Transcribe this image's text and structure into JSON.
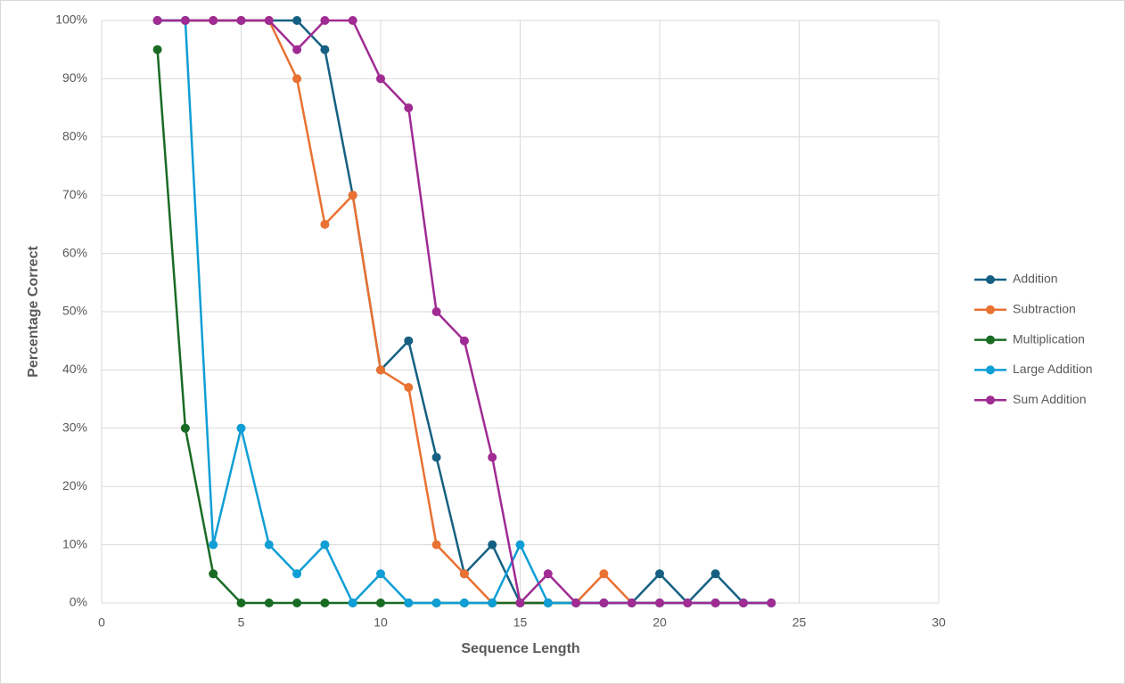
{
  "chart_data": {
    "type": "line",
    "xlabel": "Sequence Length",
    "ylabel": "Percentage Correct",
    "x": [
      2,
      3,
      4,
      5,
      6,
      7,
      8,
      9,
      10,
      11,
      12,
      13,
      14,
      15,
      16,
      17,
      18,
      19,
      20,
      21,
      22,
      23,
      24
    ],
    "series": [
      {
        "name": "Addition",
        "color": "#156082",
        "values": [
          100,
          100,
          100,
          100,
          100,
          100,
          95,
          70,
          40,
          45,
          25,
          5,
          10,
          0,
          0,
          0,
          0,
          0,
          5,
          0,
          5,
          0,
          0
        ]
      },
      {
        "name": "Subtraction",
        "color": "#e97132",
        "values": [
          100,
          100,
          100,
          100,
          100,
          90,
          65,
          70,
          40,
          37,
          10,
          5,
          0,
          0,
          0,
          0,
          5,
          0,
          0,
          0,
          0,
          0,
          0
        ]
      },
      {
        "name": "Multiplication",
        "color": "#196b24",
        "values": [
          95,
          30,
          5,
          0,
          0,
          0,
          0,
          0,
          0,
          0,
          0,
          0,
          0,
          0,
          0,
          0,
          0,
          0,
          0,
          0,
          0,
          0,
          0
        ]
      },
      {
        "name": "Large Addition",
        "color": "#0f9ed5",
        "values": [
          100,
          100,
          10,
          30,
          10,
          5,
          10,
          0,
          5,
          0,
          0,
          0,
          0,
          10,
          0,
          0,
          0,
          0,
          0,
          0,
          0,
          0,
          0
        ]
      },
      {
        "name": "Sum Addition",
        "color": "#a02b93",
        "values": [
          100,
          100,
          100,
          100,
          100,
          95,
          100,
          100,
          90,
          85,
          50,
          45,
          25,
          0,
          5,
          0,
          0,
          0,
          0,
          0,
          0,
          0,
          0
        ]
      }
    ],
    "xlim": [
      0,
      30
    ],
    "xticks": [
      0,
      5,
      10,
      15,
      20,
      25,
      30
    ],
    "ylim": [
      0,
      100
    ],
    "yticks": [
      {
        "value": 0,
        "label": "0%"
      },
      {
        "value": 10,
        "label": "10%"
      },
      {
        "value": 20,
        "label": "20%"
      },
      {
        "value": 30,
        "label": "30%"
      },
      {
        "value": 40,
        "label": "40%"
      },
      {
        "value": 50,
        "label": "50%"
      },
      {
        "value": 60,
        "label": "60%"
      },
      {
        "value": 70,
        "label": "70%"
      },
      {
        "value": 80,
        "label": "80%"
      },
      {
        "value": 90,
        "label": "90%"
      },
      {
        "value": 100,
        "label": "100%"
      }
    ],
    "grid": true,
    "legend": "right"
  }
}
